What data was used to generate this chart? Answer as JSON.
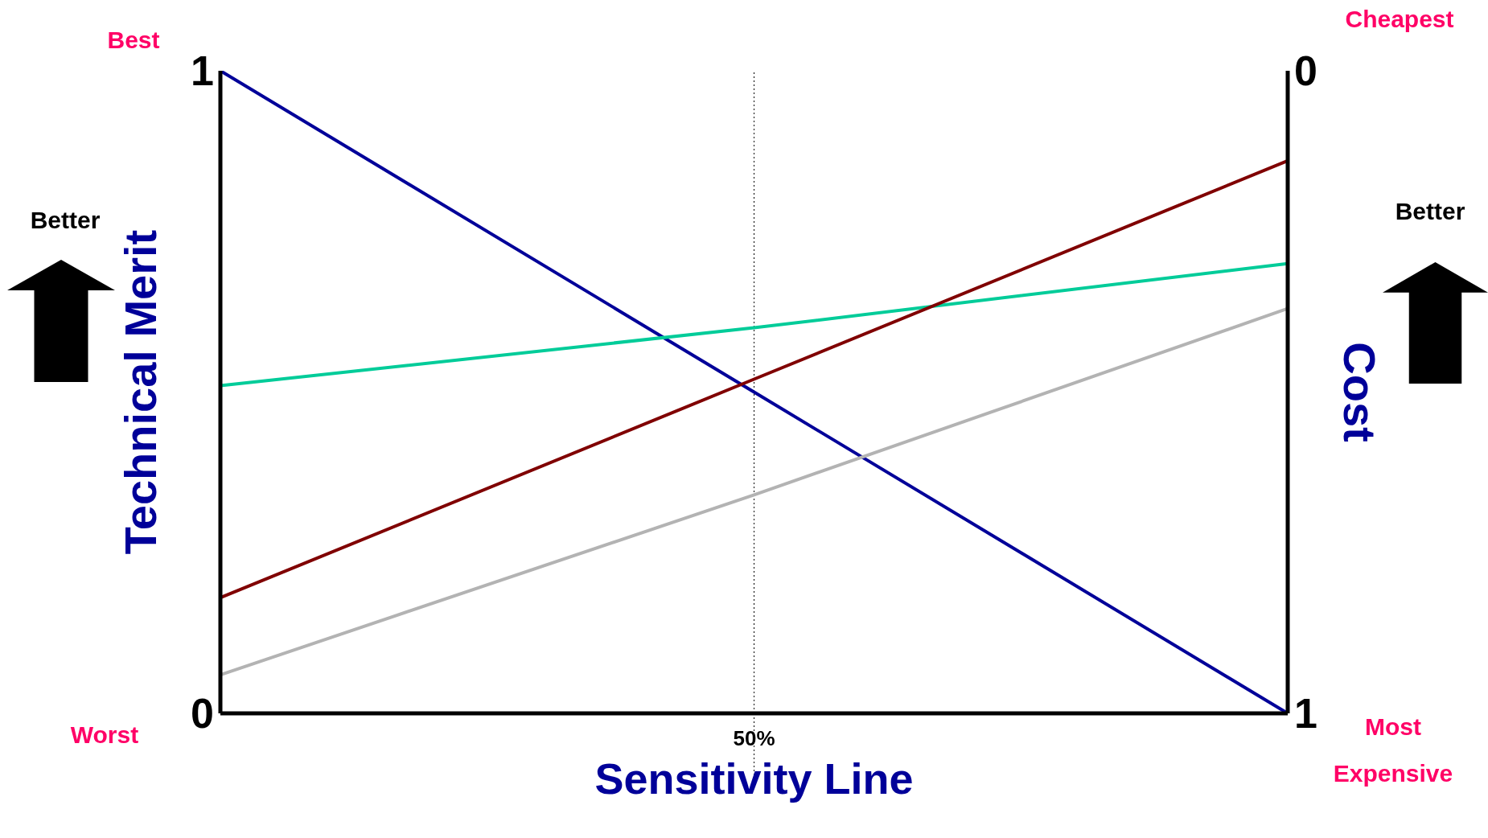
{
  "chart_data": {
    "type": "line",
    "xlabel": "Sensitivity Line",
    "ylabel": "Technical Merit",
    "y2label": "Cost",
    "categories": [
      null,
      "50%",
      null
    ],
    "ylim": [
      0,
      1
    ],
    "yticks": [
      0,
      1
    ],
    "y2lim": [
      1,
      0
    ],
    "y2ticks": [
      0,
      1
    ],
    "grid": false,
    "legend": false,
    "series": [
      {
        "color": "#000099",
        "values": [
          1,
          0.5,
          0
        ]
      },
      {
        "color": "#00cc99",
        "values": [
          0.51,
          0.6,
          0.7
        ]
      },
      {
        "color": "#800000",
        "values": [
          0.18,
          0.52,
          0.86
        ]
      },
      {
        "color": "#b3b3b3",
        "values": [
          0.06,
          0.34,
          0.63
        ]
      }
    ],
    "ref_lines": [
      {
        "axis": "x",
        "value": "50%",
        "color": "#000000",
        "line_style": "dotted"
      }
    ],
    "annotations": [
      "Best",
      "Worst",
      "Cheapest",
      "Most Expensive",
      "Better",
      "Better"
    ]
  }
}
